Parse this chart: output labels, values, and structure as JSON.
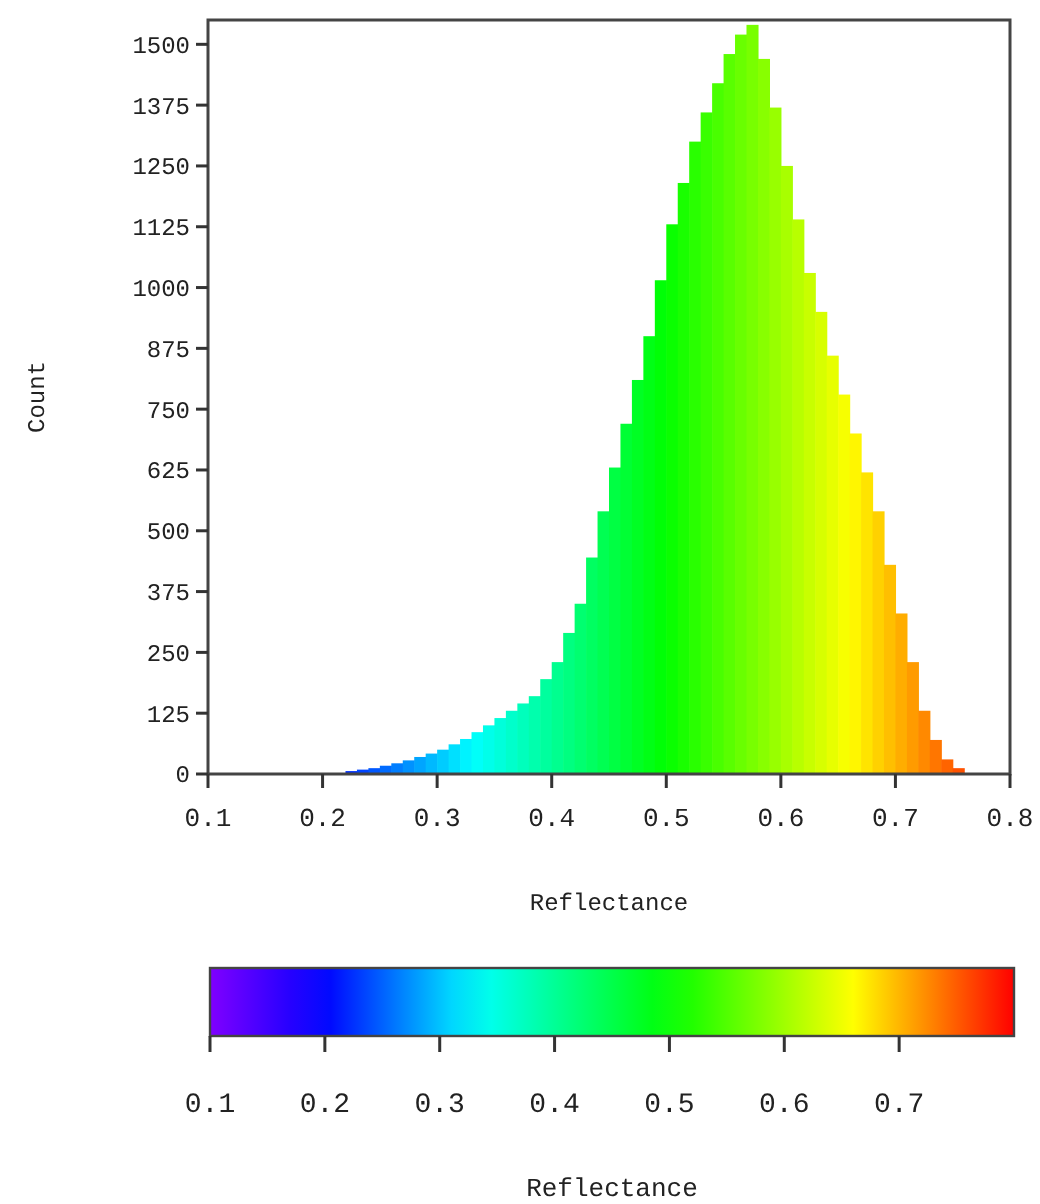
{
  "chart_data": {
    "type": "histogram",
    "xlabel": "Reflectance",
    "ylabel": "Count",
    "clabel": "Reflectance",
    "bins": [
      0.2,
      0.21,
      0.22,
      0.23,
      0.24,
      0.25,
      0.26,
      0.27,
      0.28,
      0.29,
      0.3,
      0.31,
      0.32,
      0.33,
      0.34,
      0.35,
      0.36,
      0.37,
      0.38,
      0.39,
      0.4,
      0.41,
      0.42,
      0.43,
      0.44,
      0.45,
      0.46,
      0.47,
      0.48,
      0.49,
      0.5,
      0.51,
      0.52,
      0.53,
      0.54,
      0.55,
      0.56,
      0.57,
      0.58,
      0.59,
      0.6,
      0.61,
      0.62,
      0.63,
      0.64,
      0.65,
      0.66,
      0.67,
      0.68,
      0.69,
      0.7,
      0.71,
      0.72,
      0.73,
      0.74,
      0.75,
      0.76,
      0.77,
      0.78
    ],
    "values": [
      2,
      null,
      6,
      9,
      12,
      17,
      22,
      28,
      35,
      42,
      50,
      61,
      72,
      86,
      100,
      115,
      130,
      145,
      160,
      195,
      230,
      290,
      350,
      445,
      540,
      630,
      720,
      810,
      900,
      1015,
      1130,
      1215,
      1300,
      1360,
      1420,
      1480,
      1520,
      1540,
      1470,
      1370,
      1250,
      1140,
      1030,
      950,
      860,
      780,
      700,
      620,
      540,
      430,
      330,
      230,
      130,
      70,
      30,
      12,
      null,
      2
    ],
    "xlim": [
      0.1,
      0.8
    ],
    "xticks": [
      0.1,
      0.2,
      0.3,
      0.4,
      0.5,
      0.6,
      0.7,
      0.8
    ],
    "ylim": [
      0,
      1550
    ],
    "yticks": [
      0,
      125,
      250,
      375,
      500,
      625,
      750,
      875,
      1000,
      1125,
      1250,
      1375,
      1500
    ],
    "clim": [
      0.1,
      0.8
    ],
    "cticks": [
      0.1,
      0.2,
      0.3,
      0.4,
      0.5,
      0.6,
      0.7
    ]
  }
}
